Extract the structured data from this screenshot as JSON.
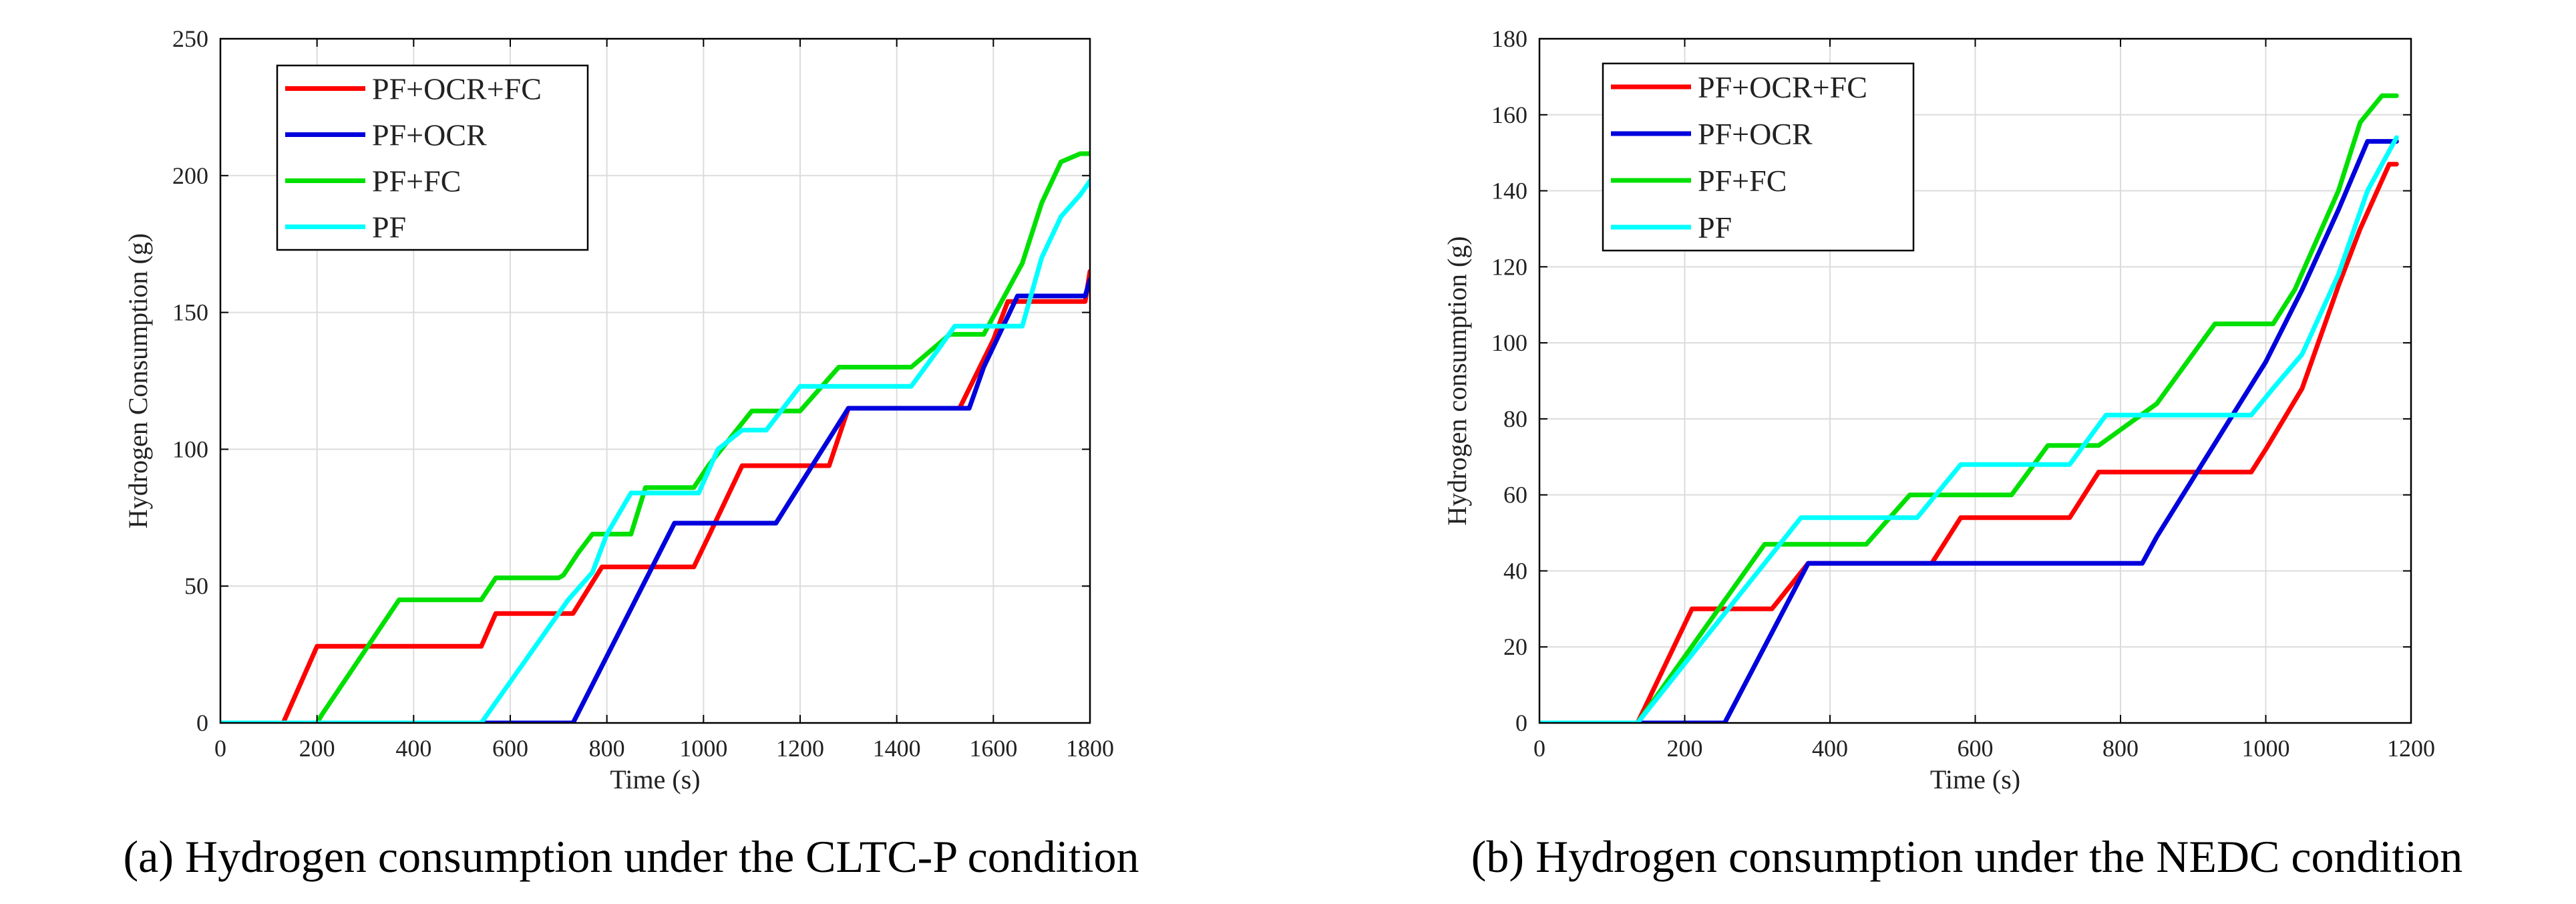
{
  "chart_data": [
    {
      "type": "line",
      "xlabel": "Time (s)",
      "ylabel": "Hydrogen Consumption (g)",
      "xlim": [
        0,
        1800
      ],
      "ylim": [
        0,
        250
      ],
      "xticks": [
        0,
        200,
        400,
        600,
        800,
        1000,
        1200,
        1400,
        1600,
        1800
      ],
      "yticks": [
        0,
        50,
        100,
        150,
        200,
        250
      ],
      "grid": true,
      "legend_position": "top-left",
      "caption": "(a) Hydrogen consumption under the CLTC-P condition",
      "series": [
        {
          "name": "PF+OCR+FC",
          "color": "#ff0000",
          "x": [
            0,
            130,
            200,
            540,
            570,
            640,
            730,
            790,
            900,
            980,
            1010,
            1080,
            1200,
            1260,
            1300,
            1530,
            1600,
            1630,
            1700,
            1790,
            1800
          ],
          "y": [
            0,
            0,
            28,
            28,
            40,
            40,
            40,
            57,
            57,
            57,
            68,
            94,
            94,
            94,
            115,
            115,
            140,
            154,
            154,
            154,
            165
          ]
        },
        {
          "name": "PF+OCR",
          "color": "#0000dd",
          "x": [
            0,
            710,
            730,
            940,
            1150,
            1300,
            1550,
            1580,
            1650,
            1700,
            1790,
            1800
          ],
          "y": [
            0,
            0,
            0,
            73,
            73,
            115,
            115,
            130,
            156,
            156,
            156,
            162
          ]
        },
        {
          "name": "PF+FC",
          "color": "#00e000",
          "x": [
            0,
            200,
            210,
            370,
            540,
            570,
            700,
            710,
            740,
            770,
            800,
            850,
            880,
            980,
            1010,
            1100,
            1200,
            1280,
            1430,
            1510,
            1580,
            1660,
            1700,
            1740,
            1780,
            1800
          ],
          "y": [
            0,
            0,
            3,
            45,
            45,
            53,
            53,
            54,
            62,
            69,
            69,
            69,
            86,
            86,
            94,
            114,
            114,
            130,
            130,
            142,
            142,
            168,
            190,
            205,
            208,
            208
          ]
        },
        {
          "name": "PF",
          "color": "#00ffff",
          "x": [
            0,
            540,
            720,
            770,
            800,
            850,
            880,
            960,
            990,
            1030,
            1080,
            1130,
            1200,
            1430,
            1480,
            1520,
            1580,
            1660,
            1700,
            1740,
            1780,
            1800
          ],
          "y": [
            0,
            0,
            45,
            55,
            69,
            84,
            84,
            84,
            84,
            100,
            107,
            107,
            123,
            123,
            135,
            145,
            145,
            145,
            170,
            185,
            193,
            198
          ]
        }
      ]
    },
    {
      "type": "line",
      "xlabel": "Time (s)",
      "ylabel": "Hydrogen consumption (g)",
      "xlim": [
        0,
        1200
      ],
      "ylim": [
        0,
        180
      ],
      "xticks": [
        0,
        200,
        400,
        600,
        800,
        1000,
        1200
      ],
      "yticks": [
        0,
        20,
        40,
        60,
        80,
        100,
        120,
        140,
        160,
        180
      ],
      "grid": true,
      "legend_position": "top-left",
      "caption": "(b) Hydrogen consumption under the NEDC condition",
      "series": [
        {
          "name": "PF+OCR+FC",
          "color": "#ff0000",
          "x": [
            0,
            135,
            210,
            320,
            370,
            540,
            580,
            730,
            770,
            980,
            1000,
            1050,
            1100,
            1130,
            1170,
            1180
          ],
          "y": [
            0,
            0,
            30,
            30,
            42,
            42,
            54,
            54,
            66,
            66,
            72,
            88,
            115,
            130,
            147,
            147
          ]
        },
        {
          "name": "PF+OCR",
          "color": "#0000dd",
          "x": [
            0,
            255,
            370,
            830,
            850,
            1000,
            1050,
            1100,
            1140,
            1180
          ],
          "y": [
            0,
            0,
            42,
            42,
            49,
            95,
            114,
            135,
            153,
            153
          ]
        },
        {
          "name": "PF+FC",
          "color": "#00e000",
          "x": [
            0,
            135,
            310,
            450,
            510,
            650,
            700,
            770,
            850,
            930,
            1010,
            1040,
            1100,
            1130,
            1160,
            1180
          ],
          "y": [
            0,
            0,
            47,
            47,
            60,
            60,
            73,
            73,
            84,
            105,
            105,
            114,
            140,
            158,
            165,
            165
          ]
        },
        {
          "name": "PF",
          "color": "#00ffff",
          "x": [
            0,
            135,
            360,
            520,
            580,
            680,
            700,
            730,
            780,
            980,
            1010,
            1050,
            1100,
            1140,
            1180
          ],
          "y": [
            0,
            0,
            54,
            54,
            68,
            68,
            68,
            68,
            81,
            81,
            88,
            97,
            118,
            140,
            154
          ]
        }
      ]
    }
  ]
}
